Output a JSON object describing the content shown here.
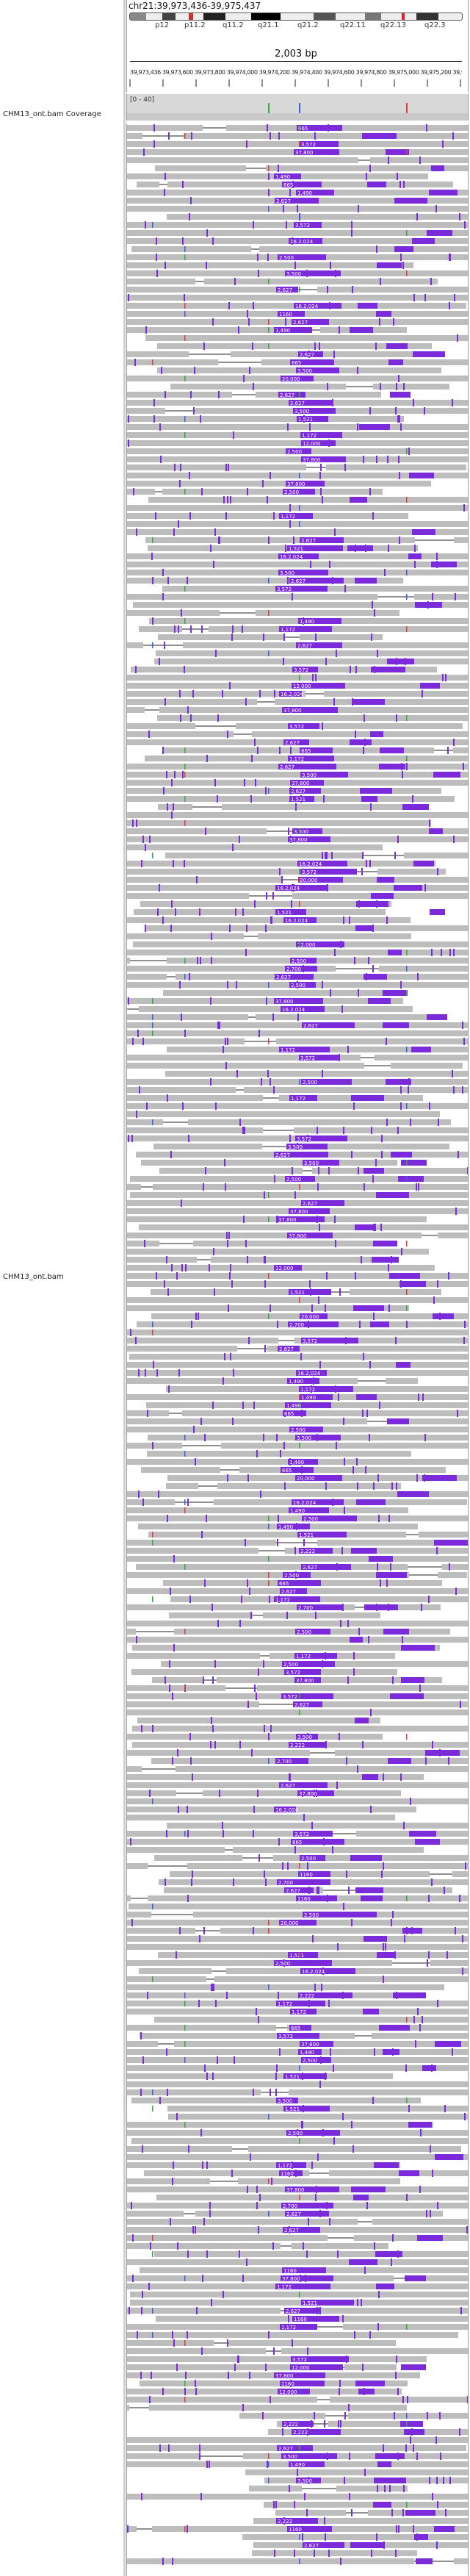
{
  "locus": "chr21:39,973,436-39,975,437",
  "width_label": "2,003 bp",
  "chromosome_bands": [
    "p12",
    "p11.2",
    "q11.2",
    "q21.1",
    "q21.2",
    "q22.11",
    "q22.13",
    "q22.3"
  ],
  "ruler_ticks_text": "39,973,436 39,973,600 39,973,800 39,974,000 39,974,200 39,974,400 39,974,600 39,974,800 39,975,000 39,975,200 39,975,400",
  "tracks": {
    "coverage_label": "CHM13_ont.bam Coverage",
    "coverage_range": "[0 - 40]",
    "alignment_label": "CHM13_ont.bam"
  },
  "colors": {
    "read_gray": "#bdbdbd",
    "insertion_purple": "#7b2bd9",
    "mismatch_green": "#2fae3a",
    "mismatch_red": "#e23c3c",
    "mismatch_blue": "#3c5fe2",
    "coverage_gray": "#c9c9c9"
  },
  "read_labels": [
    "16.2,024",
    "665",
    "2,627",
    "3,572",
    "2,222",
    "1160",
    "12,000",
    "2,627",
    "1,172",
    "2,500",
    "1,521",
    "1,490",
    "3,500",
    "2,700",
    "20,000",
    "37,800"
  ]
}
